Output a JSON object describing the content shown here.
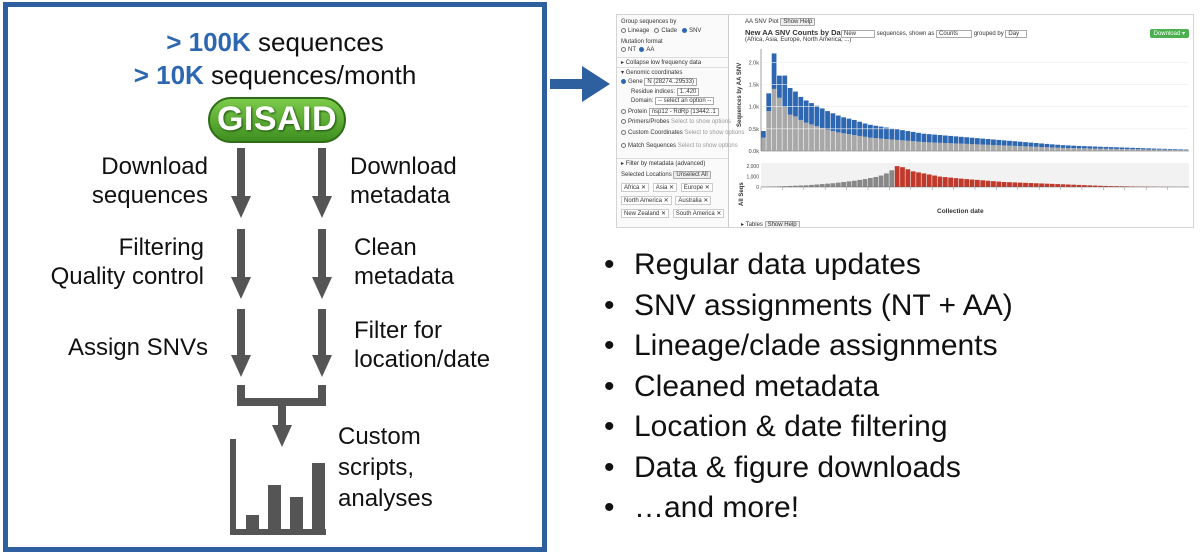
{
  "pipeline": {
    "headline1": {
      "emphasis": "> 100K",
      "rest": " sequences"
    },
    "headline2": {
      "emphasis": "> 10K",
      "rest": " sequences/month"
    },
    "logo_text": "GISAID",
    "left_steps": [
      "Download\nsequences",
      "Filtering\nQuality control",
      "Assign SNVs"
    ],
    "right_steps": [
      "Download\nmetadata",
      "Clean\nmetadata",
      "Filter for\nlocation/date"
    ],
    "output_label": "Custom\nscripts,\nanalyses",
    "output_bar_heights": [
      0.18,
      0.55,
      0.4,
      0.82
    ]
  },
  "screenshot": {
    "group_by_label": "Group sequences by",
    "group_options": [
      "Lineage",
      "Clade",
      "SNV"
    ],
    "group_selected": "SNV",
    "mutation_format_label": "Mutation format",
    "mutation_options": [
      "NT",
      "AA"
    ],
    "mutation_selected": "AA",
    "collapse_label": "Collapse low frequency data",
    "genomic_label": "Genomic coordinates",
    "gene_label": "Gene",
    "gene_value": "N (28274..29533)",
    "residue_label": "Residue indices:",
    "residue_value": "1..420",
    "domain_label": "Domain:",
    "domain_value": "-- select an option --",
    "protein_label": "Protein",
    "protein_value": "nsp12 - RdRp (13442..1",
    "primers_label": "Primers/Probes",
    "primers_hint": "Select to show options",
    "custom_label": "Custom Coordinates",
    "custom_hint": "Select to show options",
    "match_label": "Match Sequences",
    "match_hint": "Select to show options",
    "filter_meta_label": "Filter by metadata (advanced)",
    "selected_locations_label": "Selected Locations",
    "unselect_all": "Unselect All",
    "locations": [
      "Africa",
      "Asia",
      "Europe",
      "North America",
      "Australia",
      "New Zealand",
      "South America"
    ],
    "plot_title_small": "AA SNV Plot",
    "show_help": "Show Help",
    "plot_title": "New AA SNV Counts by Day",
    "plot_subtitle": "(Africa, Asia, Europe, North America, ...)",
    "mode_select": "New",
    "shown_as_text": "sequences, shown as",
    "shown_as_select": "Counts",
    "grouped_by_text": "grouped by",
    "grouped_by_select": "Day",
    "download_label": "Download",
    "x_axis_label": "Collection date",
    "y_axis_label": "Sequences by AA SNV",
    "y_ticks": [
      "2.0k",
      "1.5k",
      "1.0k",
      "0.5k",
      "0.0k"
    ],
    "all_seqs_label": "All Seqs",
    "all_seqs_ticks": [
      "2,000",
      "1,000",
      "0"
    ],
    "tables_label": "Tables"
  },
  "chart_data": {
    "type": "bar",
    "title": "New AA SNV Counts by Day",
    "xlabel": "Collection date",
    "ylabel": "Sequences by AA SNV",
    "ylim": [
      0,
      2300
    ],
    "series_colors": {
      "snv": "#2e67b1",
      "other": "#a8a8a8",
      "all_seqs_early": "#888888",
      "all_seqs_late": "#c0392b"
    },
    "values_other": [
      300,
      900,
      1400,
      1200,
      1000,
      820,
      780,
      700,
      640,
      600,
      560,
      520,
      480,
      450,
      420,
      400,
      380,
      360,
      340,
      320,
      300,
      290,
      280,
      270,
      260,
      250,
      240,
      230,
      220,
      210,
      200,
      195,
      190,
      185,
      180,
      175,
      170,
      165,
      160,
      155,
      150,
      145,
      140,
      135,
      130,
      125,
      120,
      115,
      110,
      105,
      100,
      95,
      90,
      85,
      80,
      75,
      70,
      68,
      65,
      62,
      60,
      57,
      55,
      52,
      50,
      48,
      46,
      44,
      42,
      40,
      38,
      36,
      34,
      32,
      30,
      28,
      26,
      24,
      22,
      20
    ],
    "values_snv": [
      150,
      400,
      800,
      500,
      700,
      600,
      560,
      520,
      500,
      480,
      460,
      440,
      420,
      400,
      380,
      360,
      350,
      340,
      320,
      300,
      290,
      280,
      270,
      260,
      250,
      240,
      230,
      220,
      210,
      200,
      190,
      185,
      180,
      175,
      170,
      165,
      160,
      155,
      150,
      145,
      140,
      135,
      130,
      125,
      120,
      115,
      110,
      105,
      100,
      95,
      90,
      85,
      80,
      75,
      70,
      66,
      62,
      58,
      55,
      52,
      50,
      48,
      46,
      44,
      42,
      40,
      38,
      36,
      34,
      32,
      30,
      28,
      26,
      24,
      22,
      20,
      18,
      16,
      14,
      12
    ],
    "all_seqs": [
      20,
      30,
      40,
      60,
      80,
      100,
      120,
      140,
      160,
      200,
      240,
      280,
      320,
      360,
      420,
      480,
      540,
      600,
      680,
      760,
      860,
      960,
      1100,
      1300,
      1600,
      2000,
      1900,
      1700,
      1500,
      1400,
      1300,
      1200,
      1100,
      1000,
      950,
      900,
      850,
      800,
      760,
      720,
      680,
      640,
      600,
      560,
      520,
      480,
      460,
      440,
      420,
      400,
      380,
      360,
      340,
      320,
      300,
      280,
      260,
      240,
      220,
      200,
      180,
      160,
      140,
      120,
      100,
      90,
      80,
      70,
      60,
      50,
      40,
      35,
      30,
      25,
      20,
      15,
      12,
      10,
      8,
      6
    ]
  },
  "features": [
    "Regular data updates",
    "SNV assignments (NT + AA)",
    "Lineage/clade assignments",
    "Cleaned metadata",
    "Location & date filtering",
    "Data & figure downloads",
    "…and more!"
  ],
  "bullet": "•",
  "colors": {
    "accent": "#2e67b1",
    "logo_green": "#4e9f2b",
    "arrow_gray": "#555555"
  }
}
